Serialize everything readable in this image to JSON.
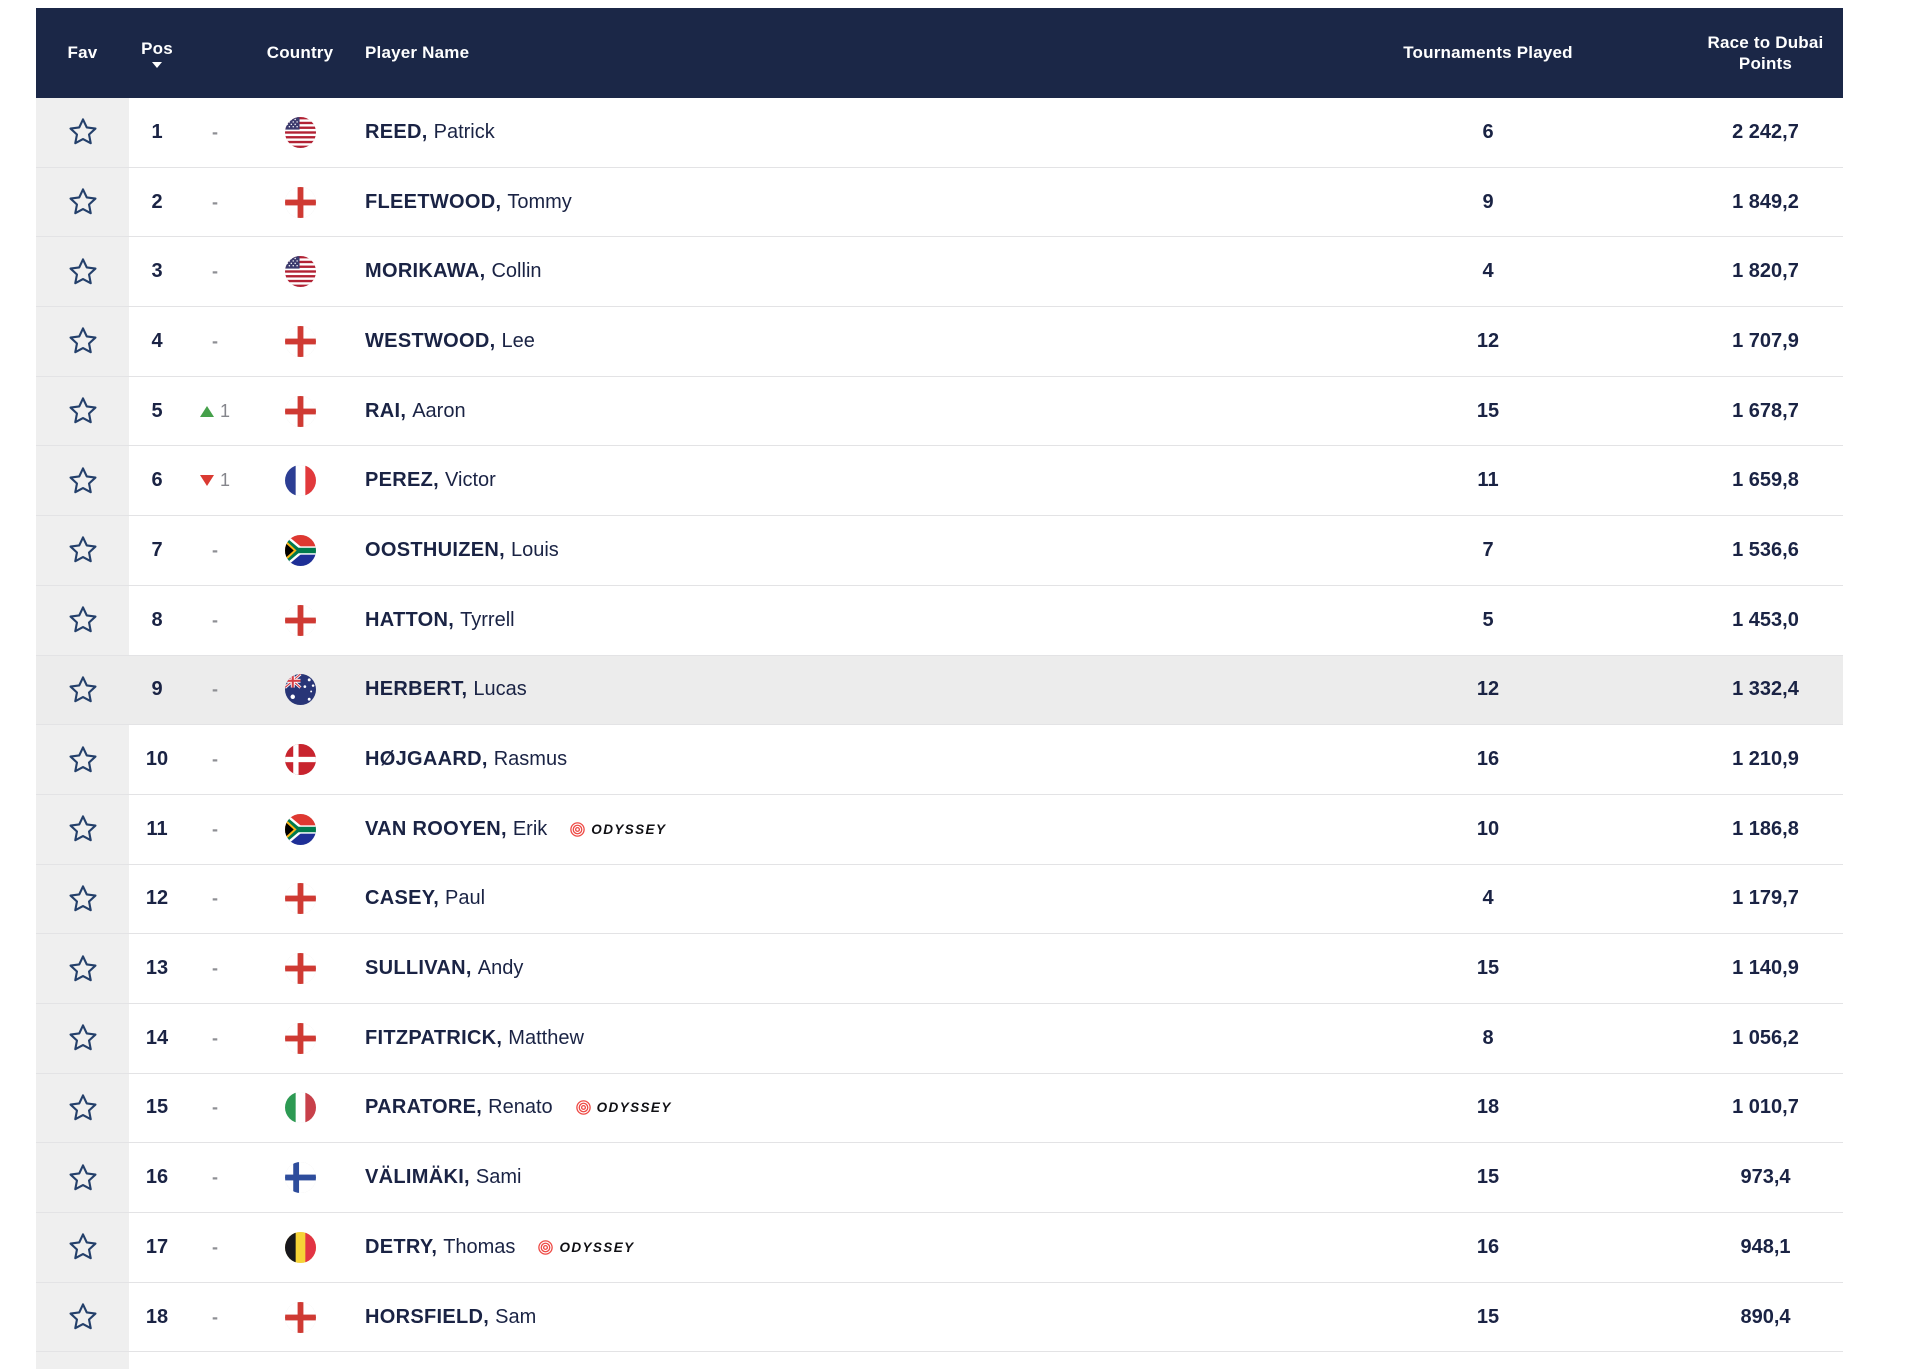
{
  "colors": {
    "header_bg": "#1b2747",
    "row_text": "#1a2344",
    "fav_column_bg": "#efefef",
    "highlight_row_bg": "#ececec",
    "separator": "#e3e3e5",
    "move_up_green": "#45a04a",
    "move_down_red": "#da3a32",
    "muted_gray": "#8e8f94",
    "badge_red": "#ee4b46"
  },
  "header": {
    "fav": "Fav",
    "pos": "Pos",
    "country": "Country",
    "player": "Player Name",
    "tournaments": "Tournaments Played",
    "points": "Race to Dubai Points",
    "sorted_column": "Pos",
    "sort_direction": "desc"
  },
  "table": {
    "rows": [
      {
        "pos": "1",
        "move_dir": "none",
        "move_value": "",
        "country": "USA",
        "surname": "REED",
        "first_name": "Patrick",
        "badge": null,
        "tournaments": "6",
        "points": "2 242,7",
        "highlighted": false
      },
      {
        "pos": "2",
        "move_dir": "none",
        "move_value": "",
        "country": "ENG",
        "surname": "FLEETWOOD",
        "first_name": "Tommy",
        "badge": null,
        "tournaments": "9",
        "points": "1 849,2",
        "highlighted": false
      },
      {
        "pos": "3",
        "move_dir": "none",
        "move_value": "",
        "country": "USA",
        "surname": "MORIKAWA",
        "first_name": "Collin",
        "badge": null,
        "tournaments": "4",
        "points": "1 820,7",
        "highlighted": false
      },
      {
        "pos": "4",
        "move_dir": "none",
        "move_value": "",
        "country": "ENG",
        "surname": "WESTWOOD",
        "first_name": "Lee",
        "badge": null,
        "tournaments": "12",
        "points": "1 707,9",
        "highlighted": false
      },
      {
        "pos": "5",
        "move_dir": "up",
        "move_value": "1",
        "country": "ENG",
        "surname": "RAI",
        "first_name": "Aaron",
        "badge": null,
        "tournaments": "15",
        "points": "1 678,7",
        "highlighted": false
      },
      {
        "pos": "6",
        "move_dir": "down",
        "move_value": "1",
        "country": "FRA",
        "surname": "PEREZ",
        "first_name": "Victor",
        "badge": null,
        "tournaments": "11",
        "points": "1 659,8",
        "highlighted": false
      },
      {
        "pos": "7",
        "move_dir": "none",
        "move_value": "",
        "country": "RSA",
        "surname": "OOSTHUIZEN",
        "first_name": "Louis",
        "badge": null,
        "tournaments": "7",
        "points": "1 536,6",
        "highlighted": false
      },
      {
        "pos": "8",
        "move_dir": "none",
        "move_value": "",
        "country": "ENG",
        "surname": "HATTON",
        "first_name": "Tyrrell",
        "badge": null,
        "tournaments": "5",
        "points": "1 453,0",
        "highlighted": false
      },
      {
        "pos": "9",
        "move_dir": "none",
        "move_value": "",
        "country": "AUS",
        "surname": "HERBERT",
        "first_name": "Lucas",
        "badge": null,
        "tournaments": "12",
        "points": "1 332,4",
        "highlighted": true
      },
      {
        "pos": "10",
        "move_dir": "none",
        "move_value": "",
        "country": "DEN",
        "surname": "HØJGAARD",
        "first_name": "Rasmus",
        "badge": null,
        "tournaments": "16",
        "points": "1 210,9",
        "highlighted": false
      },
      {
        "pos": "11",
        "move_dir": "none",
        "move_value": "",
        "country": "RSA",
        "surname": "VAN ROOYEN",
        "first_name": "Erik",
        "badge": "ODYSSEY",
        "tournaments": "10",
        "points": "1 186,8",
        "highlighted": false
      },
      {
        "pos": "12",
        "move_dir": "none",
        "move_value": "",
        "country": "ENG",
        "surname": "CASEY",
        "first_name": "Paul",
        "badge": null,
        "tournaments": "4",
        "points": "1 179,7",
        "highlighted": false
      },
      {
        "pos": "13",
        "move_dir": "none",
        "move_value": "",
        "country": "ENG",
        "surname": "SULLIVAN",
        "first_name": "Andy",
        "badge": null,
        "tournaments": "15",
        "points": "1 140,9",
        "highlighted": false
      },
      {
        "pos": "14",
        "move_dir": "none",
        "move_value": "",
        "country": "ENG",
        "surname": "FITZPATRICK",
        "first_name": "Matthew",
        "badge": null,
        "tournaments": "8",
        "points": "1 056,2",
        "highlighted": false
      },
      {
        "pos": "15",
        "move_dir": "none",
        "move_value": "",
        "country": "ITA",
        "surname": "PARATORE",
        "first_name": "Renato",
        "badge": "ODYSSEY",
        "tournaments": "18",
        "points": "1 010,7",
        "highlighted": false
      },
      {
        "pos": "16",
        "move_dir": "none",
        "move_value": "",
        "country": "FIN",
        "surname": "VÄLIMÄKI",
        "first_name": "Sami",
        "badge": null,
        "tournaments": "15",
        "points": "973,4",
        "highlighted": false
      },
      {
        "pos": "17",
        "move_dir": "none",
        "move_value": "",
        "country": "BEL",
        "surname": "DETRY",
        "first_name": "Thomas",
        "badge": "ODYSSEY",
        "tournaments": "16",
        "points": "948,1",
        "highlighted": false
      },
      {
        "pos": "18",
        "move_dir": "none",
        "move_value": "",
        "country": "ENG",
        "surname": "HORSFIELD",
        "first_name": "Sam",
        "badge": null,
        "tournaments": "15",
        "points": "890,4",
        "highlighted": false
      }
    ]
  }
}
